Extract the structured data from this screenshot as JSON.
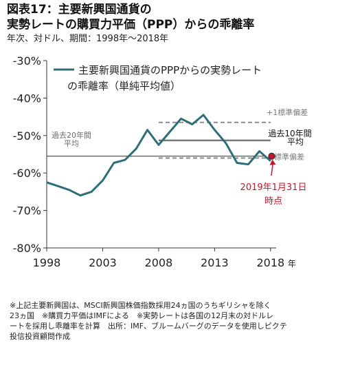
{
  "header": {
    "title_line1": "図表17：主要新興国通貨の",
    "title_line2": "実勢レートの購買力平価（PPP）からの乖離率",
    "subtitle": "年次、対ドル、期間：1998年～2018年"
  },
  "chart_data": {
    "type": "line",
    "x": [
      1998,
      1999,
      2000,
      2001,
      2002,
      2003,
      2004,
      2005,
      2006,
      2007,
      2008,
      2009,
      2010,
      2011,
      2012,
      2013,
      2014,
      2015,
      2016,
      2017,
      2018
    ],
    "series": [
      {
        "name": "主要新興国通貨のPPPからの実勢レートの乖離率（単純平均値）",
        "values": [
          -62.5,
          -63.5,
          -64.5,
          -66.0,
          -65.0,
          -62.0,
          -57.3,
          -56.5,
          -53.5,
          -48.5,
          -52.5,
          -49.0,
          -45.5,
          -47.0,
          -44.5,
          -48.5,
          -52.0,
          -57.3,
          -57.7,
          -54.2,
          -56.8
        ],
        "color": "#2e6e78"
      }
    ],
    "latest_point": {
      "x": 2018.1,
      "y": -55.5,
      "label_line1": "2019年1月31日",
      "label_line2": "時点",
      "color": "#c0192b"
    },
    "reference_lines": {
      "avg20": {
        "value": -55.5,
        "label_line1": "過去20年間",
        "label_line2": "平均",
        "color": "#555555"
      },
      "avg10": {
        "value": -51.3,
        "label_line1": "過去10年間",
        "label_line2": "平均",
        "color": "#777777"
      },
      "plus_sd": {
        "value": -46.5,
        "label": "+1標準偏差",
        "color": "#8a8a8a"
      },
      "minus_sd": {
        "value": -56.0,
        "label": "-1標準偏差",
        "color": "#8a8a8a"
      }
    },
    "ylim": [
      -80,
      -30
    ],
    "yticks": [
      -30,
      -40,
      -50,
      -60,
      -70,
      -80
    ],
    "ytick_labels": [
      "-30%",
      "-40%",
      "-50%",
      "-60%",
      "-70%",
      "-80%"
    ],
    "xticks": [
      1998,
      2003,
      2008,
      2013,
      2018
    ],
    "xtick_labels": [
      "1998",
      "2003",
      "2008",
      "2013",
      "2018"
    ],
    "x_unit": "年",
    "grid": false,
    "legend_position": "top-left"
  },
  "footnote": {
    "line1": "※上記主要新興国は、MSCI新興国株価指数採用24ヵ国のうちギリシャを除く",
    "line2": "23ヵ国　※購買力平価はIMFによる　※実勢レートは各国の12月末の対ドルレ",
    "line3": "ートを採用し乖離率を計算　出所：IMF、ブルームバーグのデータを使用しピクテ",
    "line4": "投信投資顧問作成"
  }
}
